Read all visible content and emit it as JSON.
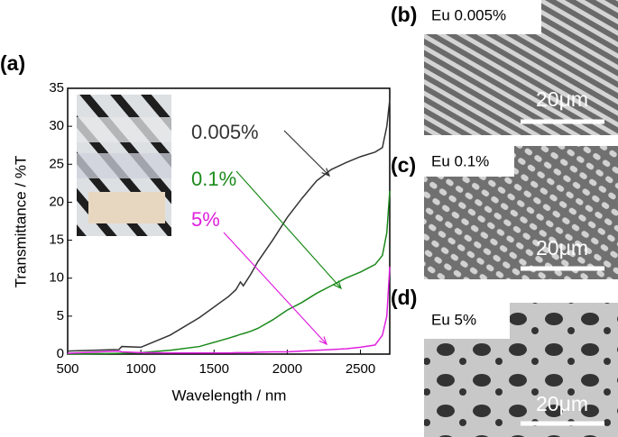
{
  "chart_data": {
    "type": "line",
    "x_label": "Wavelength / nm",
    "y_label": "Transmittance / %T",
    "x": [
      500,
      850,
      870,
      1000,
      1200,
      1400,
      1600,
      1650,
      1680,
      1700,
      1750,
      1800,
      1900,
      2000,
      2100,
      2200,
      2300,
      2400,
      2500,
      2600,
      2650,
      2680,
      2700
    ],
    "series": [
      {
        "name": "0.005%",
        "color": "#333333",
        "values": [
          0.4,
          0.6,
          1.0,
          0.9,
          2.5,
          4.8,
          7.6,
          8.5,
          9.5,
          9.0,
          10.5,
          12.2,
          15.0,
          18.0,
          20.5,
          22.8,
          24.3,
          25.2,
          26.0,
          26.6,
          27.2,
          30.0,
          33.5
        ]
      },
      {
        "name": "0.1%",
        "color": "#1a8a1a",
        "values": [
          0,
          0.1,
          0.1,
          0.2,
          0.5,
          1.0,
          2.1,
          2.4,
          2.6,
          2.7,
          3.0,
          3.4,
          4.5,
          5.8,
          6.8,
          8.0,
          9.0,
          10.0,
          10.8,
          11.8,
          13.0,
          16.0,
          21.5
        ]
      },
      {
        "name": "5%",
        "color": "#e020e0",
        "values": [
          0.1,
          0.4,
          0.3,
          0.2,
          0.15,
          0.15,
          0.15,
          0.2,
          0.2,
          0.2,
          0.2,
          0.25,
          0.3,
          0.3,
          0.4,
          0.5,
          0.6,
          0.7,
          0.9,
          1.2,
          2.5,
          5.0,
          11.5
        ]
      }
    ],
    "xlim": [
      500,
      2700
    ],
    "xticks": [
      500,
      1000,
      1500,
      2000,
      2500
    ],
    "ylim": [
      0,
      35
    ],
    "yticks": [
      0,
      5,
      10,
      15,
      20,
      25,
      30,
      35
    ]
  },
  "panels": [
    {
      "label": "(a)"
    },
    {
      "label": "(b)",
      "caption": "Eu 0.005%",
      "scale_bar": "20μm"
    },
    {
      "label": "(c)",
      "caption": "Eu 0.1%",
      "scale_bar": "20μm"
    },
    {
      "label": "(d)",
      "caption": "Eu 5%",
      "scale_bar": "20μm"
    }
  ]
}
